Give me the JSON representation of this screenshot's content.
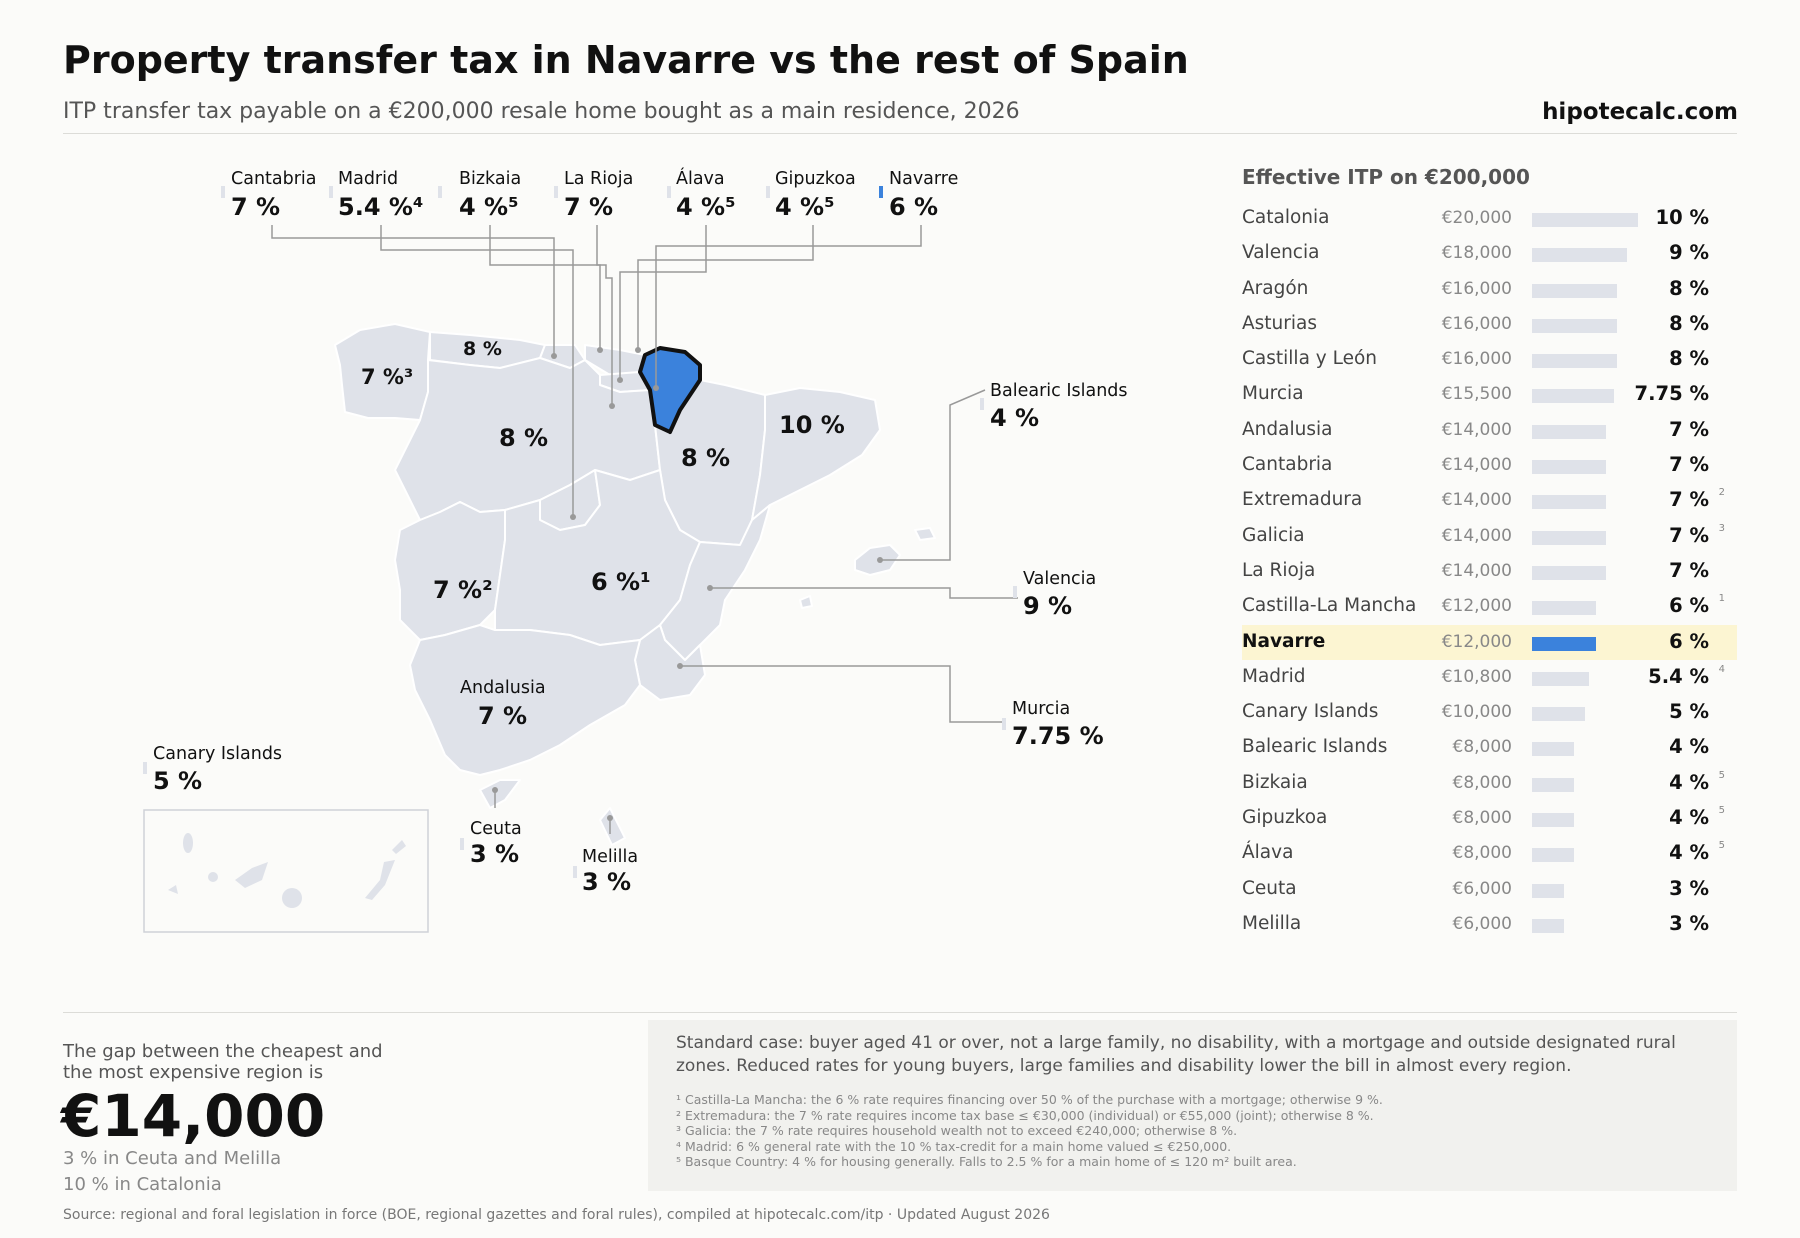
{
  "title": "Property transfer tax in Navarre vs the rest of Spain",
  "subtitle": "ITP transfer tax payable on a €200,000 resale home bought as a main residence, 2026",
  "brand": "hipotecalc.com",
  "colors": {
    "highlight": "#3b82dc",
    "region": "#dfe2e9",
    "highlight_row": "#fcf5d2",
    "leader": "#999999"
  },
  "map": {
    "callouts_top": [
      {
        "name": "Cantabria",
        "rate": "7 %"
      },
      {
        "name": "Madrid",
        "rate": "5.4 %⁴"
      },
      {
        "name": "Bizkaia",
        "rate": "4 %⁵"
      },
      {
        "name": "La Rioja",
        "rate": "7 %"
      },
      {
        "name": "Álava",
        "rate": "4 %⁵"
      },
      {
        "name": "Gipuzkoa",
        "rate": "4 %⁵"
      },
      {
        "name": "Navarre",
        "rate": "6 %"
      }
    ],
    "callouts_side": [
      {
        "name": "Balearic Islands",
        "rate": "4 %"
      },
      {
        "name": "Valencia",
        "rate": "9 %"
      },
      {
        "name": "Murcia",
        "rate": "7.75 %"
      },
      {
        "name": "Canary Islands",
        "rate": "5 %"
      },
      {
        "name": "Andalusia",
        "rate": "7 %"
      },
      {
        "name": "Ceuta",
        "rate": "3 %"
      },
      {
        "name": "Melilla",
        "rate": "3 %"
      }
    ],
    "region_labels": {
      "galicia": "7 %³",
      "asturias": "8 %",
      "castilla_leon": "8 %",
      "aragon": "8 %",
      "catalonia": "10 %",
      "castilla_la_mancha": "6 %¹",
      "extremadura": "7 %²"
    }
  },
  "chart_data": {
    "type": "bar",
    "title": "Effective ITP on €200,000",
    "categories": [
      "Catalonia",
      "Valencia",
      "Aragón",
      "Asturias",
      "Castilla y León",
      "Murcia",
      "Andalusia",
      "Cantabria",
      "Extremadura",
      "Galicia",
      "La Rioja",
      "Castilla-La Mancha",
      "Navarre",
      "Madrid",
      "Canary Islands",
      "Balearic Islands",
      "Bizkaia",
      "Gipuzkoa",
      "Álava",
      "Ceuta",
      "Melilla"
    ],
    "values": [
      20000,
      18000,
      16000,
      16000,
      16000,
      15500,
      14000,
      14000,
      14000,
      14000,
      14000,
      12000,
      12000,
      10800,
      10000,
      8000,
      8000,
      8000,
      8000,
      6000,
      6000
    ],
    "amount_labels": [
      "€20,000",
      "€18,000",
      "€16,000",
      "€16,000",
      "€16,000",
      "€15,500",
      "€14,000",
      "€14,000",
      "€14,000",
      "€14,000",
      "€14,000",
      "€12,000",
      "€12,000",
      "€10,800",
      "€10,000",
      "€8,000",
      "€8,000",
      "€8,000",
      "€8,000",
      "€6,000",
      "€6,000"
    ],
    "rate_labels": [
      "10 %",
      "9 %",
      "8 %",
      "8 %",
      "8 %",
      "7.75 %",
      "7 %",
      "7 %",
      "7 %",
      "7 %",
      "7 %",
      "6 %",
      "6 %",
      "5.4 %",
      "5 %",
      "4 %",
      "4 %",
      "4 %",
      "4 %",
      "3 %",
      "3 %"
    ],
    "footnote_marks": [
      "",
      "",
      "",
      "",
      "",
      "",
      "",
      "",
      "2",
      "3",
      "",
      "1",
      "",
      "4",
      "",
      "",
      "5",
      "5",
      "5",
      "",
      ""
    ],
    "highlight": "Navarre",
    "xlim": [
      0,
      20000
    ]
  },
  "gap": {
    "text": "The gap between the cheapest and the most expensive region is",
    "amount": "€14,000",
    "low": "3 % in Ceuta and Melilla",
    "high": "10 % in Catalonia"
  },
  "note": {
    "main": "Standard case: buyer aged 41 or over, not a large family, no disability, with a mortgage and outside designated rural zones. Reduced rates for young buyers, large families and disability lower the bill in almost every region.",
    "footnotes": [
      "¹ Castilla-La Mancha: the 6 % rate requires financing over 50 % of the purchase with a mortgage; otherwise 9 %.",
      "² Extremadura: the 7 % rate requires income tax base ≤ €30,000 (individual) or €55,000 (joint); otherwise 8 %.",
      "³ Galicia: the 7 % rate requires household wealth not to exceed €240,000; otherwise 8 %.",
      "⁴ Madrid: 6 % general rate with the 10 % tax-credit for a main home valued ≤ €250,000.",
      "⁵ Basque Country: 4 % for housing generally. Falls to 2.5 % for a main home of ≤ 120 m² built area."
    ]
  },
  "source": "Source: regional and foral legislation in force (BOE, regional gazettes and foral rules), compiled at hipotecalc.com/itp · Updated August 2026"
}
